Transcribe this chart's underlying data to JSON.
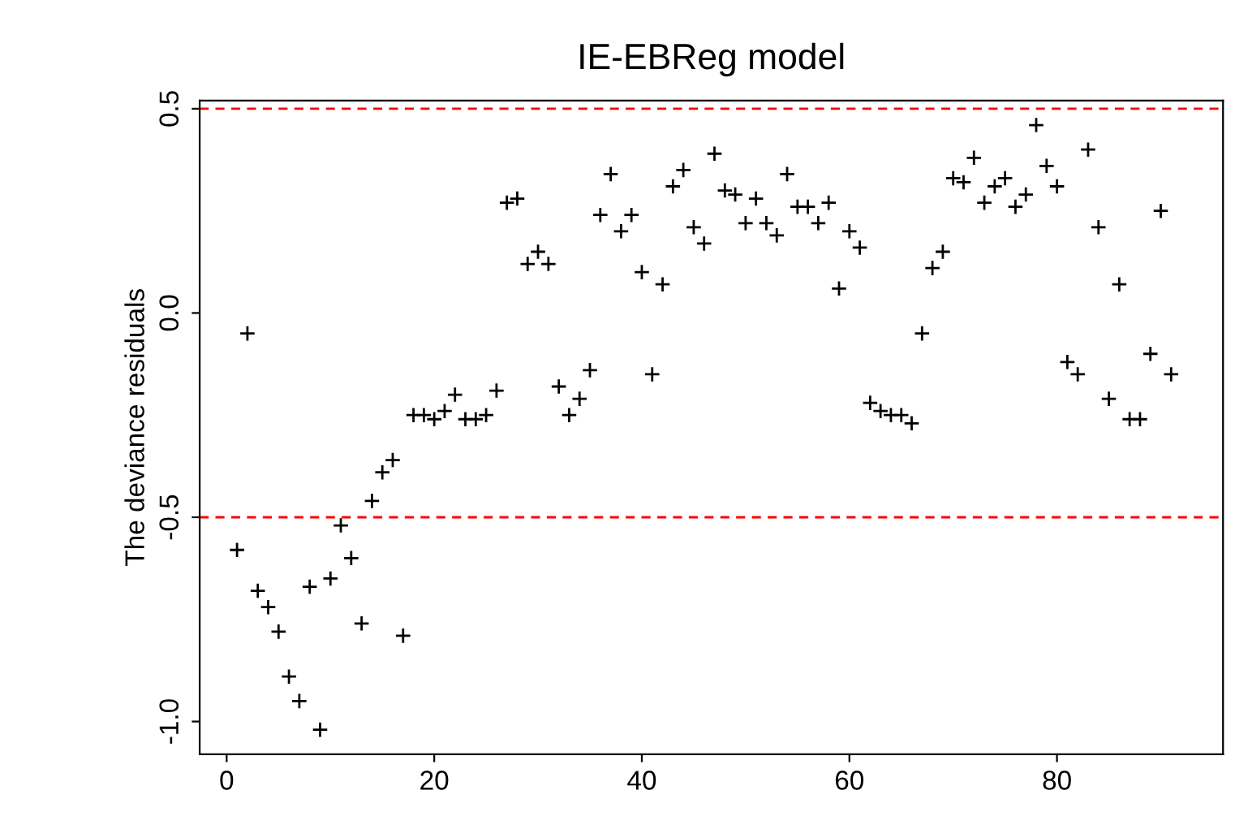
{
  "chart_data": {
    "type": "scatter",
    "title": "IE-EBReg model",
    "ylabel": "The deviance residuals",
    "x": [
      1,
      2,
      3,
      4,
      5,
      6,
      7,
      8,
      9,
      10,
      11,
      12,
      13,
      14,
      15,
      16,
      17,
      18,
      19,
      20,
      21,
      22,
      23,
      24,
      25,
      26,
      27,
      28,
      29,
      30,
      31,
      32,
      33,
      34,
      35,
      36,
      37,
      38,
      39,
      40,
      41,
      42,
      43,
      44,
      45,
      46,
      47,
      48,
      49,
      50,
      51,
      52,
      53,
      54,
      55,
      56,
      57,
      58,
      59,
      60,
      61,
      62,
      63,
      64,
      65,
      66,
      67,
      68,
      69,
      70,
      71,
      72,
      73,
      74,
      75,
      76,
      77,
      78,
      79,
      80,
      81,
      82,
      83,
      84,
      85,
      86,
      87,
      88,
      89,
      90,
      91
    ],
    "series": [
      {
        "color": "#000000",
        "values": [
          -0.58,
          -0.05,
          -0.68,
          -0.72,
          -0.78,
          -0.89,
          -0.95,
          -0.67,
          -1.02,
          -0.65,
          -0.52,
          -0.6,
          -0.76,
          -0.46,
          -0.39,
          -0.36,
          -0.79,
          -0.25,
          -0.25,
          -0.26,
          -0.24,
          -0.2,
          -0.26,
          -0.26,
          -0.25,
          -0.19,
          0.27,
          0.28,
          0.12,
          0.15,
          0.12,
          -0.18,
          -0.25,
          -0.21,
          -0.14,
          0.24,
          0.34,
          0.2,
          0.24,
          0.1,
          -0.15,
          0.07,
          0.31,
          0.35,
          0.21,
          0.17,
          0.39,
          0.3,
          0.29,
          0.22,
          0.28,
          0.22,
          0.19,
          0.34,
          0.26,
          0.26,
          0.22,
          0.27,
          0.06,
          0.2,
          0.16,
          -0.22,
          -0.24,
          -0.25,
          -0.25,
          -0.27,
          -0.05,
          0.11,
          0.15,
          0.33,
          0.32,
          0.38,
          0.27,
          0.31,
          0.33,
          0.26,
          0.29,
          0.46,
          0.36,
          0.31,
          -0.12,
          -0.15,
          0.4,
          0.21,
          -0.21,
          0.07,
          -0.26,
          -0.26,
          -0.1,
          0.25,
          -0.15
        ]
      }
    ],
    "xlim": [
      -2.6,
      96
    ],
    "ylim": [
      -1.08,
      0.52
    ],
    "xticks": [
      0,
      20,
      40,
      60,
      80
    ],
    "yticks": [
      {
        "value": -1,
        "label": "-1.0"
      },
      -0.5,
      {
        "value": 0,
        "label": "0.0"
      },
      0.5
    ],
    "marker": "cross",
    "grid": false,
    "legend": false,
    "ref_lines": [
      {
        "axis": "y",
        "value": 0.5,
        "color": "#ff0000",
        "line_style": "dashed"
      },
      {
        "axis": "y",
        "value": -0.5,
        "color": "#ff0000",
        "line_style": "dashed"
      }
    ]
  }
}
